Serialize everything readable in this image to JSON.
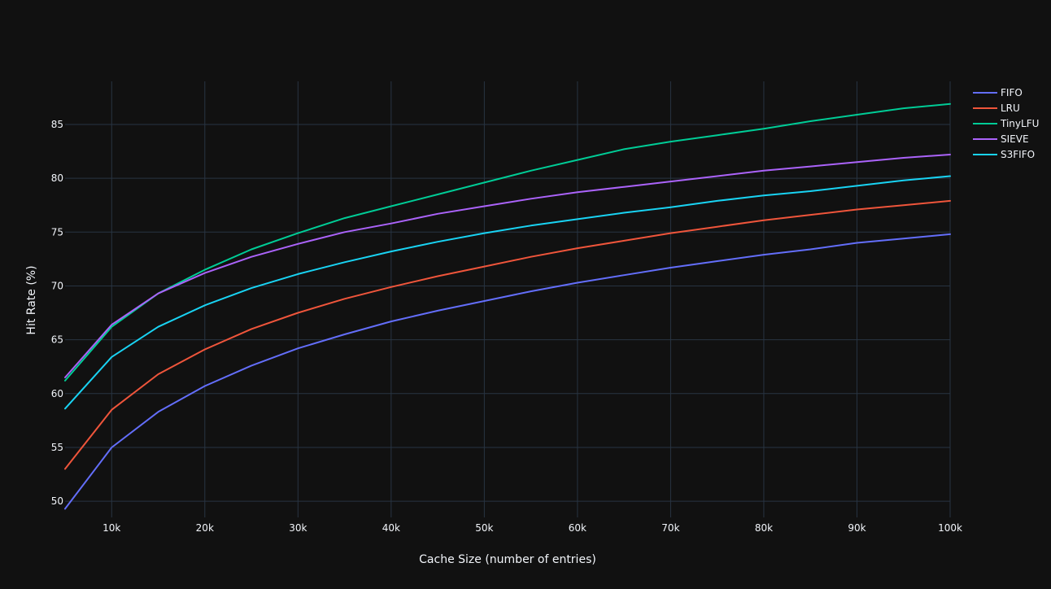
{
  "colors": {
    "background": "#111111",
    "grid": "#283442",
    "text": "#f2f5fa"
  },
  "chart_data": {
    "type": "line",
    "title": "",
    "xlabel": "Cache Size (number of entries)",
    "ylabel": "Hit Rate (%)",
    "xlim": [
      5000,
      100000
    ],
    "ylim": [
      48.5,
      89
    ],
    "x": [
      5000,
      10000,
      15000,
      20000,
      25000,
      30000,
      35000,
      40000,
      45000,
      50000,
      55000,
      60000,
      65000,
      70000,
      75000,
      80000,
      85000,
      90000,
      95000,
      100000
    ],
    "x_ticks": [
      10000,
      20000,
      30000,
      40000,
      50000,
      60000,
      70000,
      80000,
      90000,
      100000
    ],
    "x_tick_labels": [
      "10k",
      "20k",
      "30k",
      "40k",
      "50k",
      "60k",
      "70k",
      "80k",
      "90k",
      "100k"
    ],
    "y_ticks": [
      50,
      55,
      60,
      65,
      70,
      75,
      80,
      85
    ],
    "y_tick_labels": [
      "50",
      "55",
      "60",
      "65",
      "70",
      "75",
      "80",
      "85"
    ],
    "grid": true,
    "legend_position": "top-right",
    "series": [
      {
        "name": "FIFO",
        "color": "#636efa",
        "values": [
          49.3,
          55.0,
          58.3,
          60.7,
          62.6,
          64.2,
          65.5,
          66.7,
          67.7,
          68.6,
          69.5,
          70.3,
          71.0,
          71.7,
          72.3,
          72.9,
          73.4,
          74.0,
          74.4,
          74.8
        ]
      },
      {
        "name": "LRU",
        "color": "#ef553b",
        "values": [
          53.0,
          58.5,
          61.8,
          64.1,
          66.0,
          67.5,
          68.8,
          69.9,
          70.9,
          71.8,
          72.7,
          73.5,
          74.2,
          74.9,
          75.5,
          76.1,
          76.6,
          77.1,
          77.5,
          77.9
        ]
      },
      {
        "name": "TinyLFU",
        "color": "#00cc96",
        "values": [
          61.2,
          66.2,
          69.3,
          71.5,
          73.4,
          74.9,
          76.3,
          77.4,
          78.5,
          79.6,
          80.7,
          81.7,
          82.7,
          83.4,
          84.0,
          84.6,
          85.3,
          85.9,
          86.5,
          86.9
        ]
      },
      {
        "name": "SIEVE",
        "color": "#ab63fa",
        "values": [
          61.5,
          66.4,
          69.3,
          71.2,
          72.7,
          73.9,
          75.0,
          75.8,
          76.7,
          77.4,
          78.1,
          78.7,
          79.2,
          79.7,
          80.2,
          80.7,
          81.1,
          81.5,
          81.9,
          82.2
        ]
      },
      {
        "name": "S3FIFO",
        "color": "#19d3f3",
        "values": [
          58.6,
          63.4,
          66.2,
          68.2,
          69.8,
          71.1,
          72.2,
          73.2,
          74.1,
          74.9,
          75.6,
          76.2,
          76.8,
          77.3,
          77.9,
          78.4,
          78.8,
          79.3,
          79.8,
          80.2
        ]
      }
    ]
  }
}
